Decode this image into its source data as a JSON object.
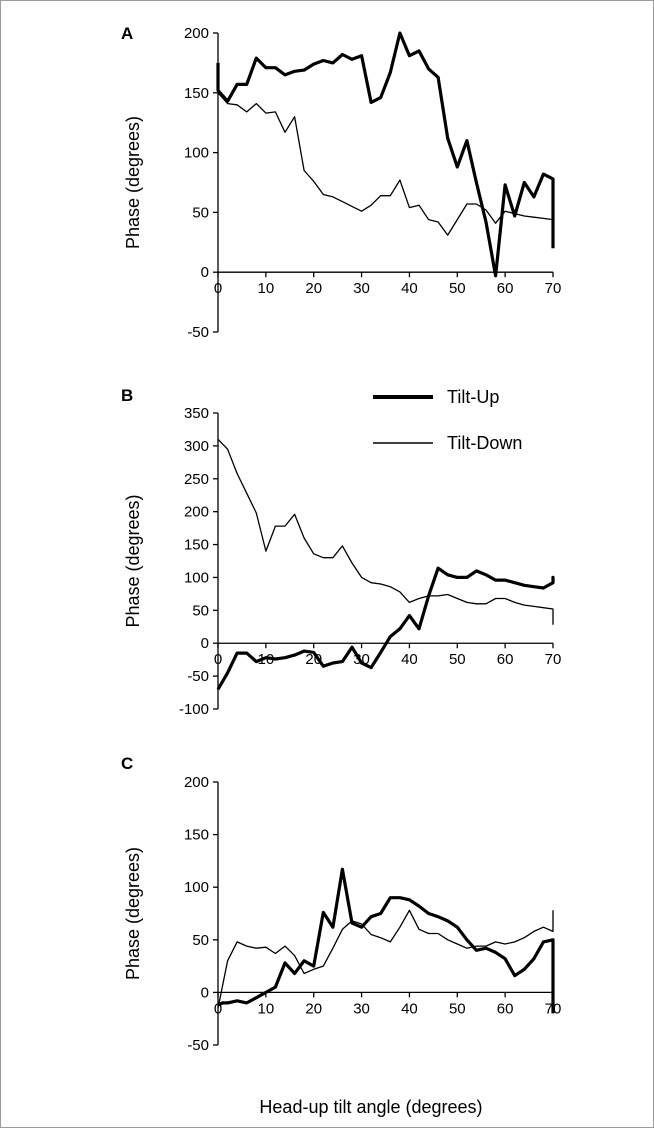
{
  "figure": {
    "xlabel": "Head-up tilt angle (degrees)"
  },
  "legend": {
    "items": [
      {
        "label": "Tilt-Up",
        "series": "tilt_up"
      },
      {
        "label": "Tilt-Down",
        "series": "tilt_down"
      }
    ],
    "placement": "top-right of panel B"
  },
  "chart_data": [
    {
      "type": "line",
      "panel_label": "A",
      "ylabel": "Phase (degrees)",
      "xlim": [
        0,
        70
      ],
      "ylim": [
        -50,
        200
      ],
      "x_ticks": [
        0,
        10,
        20,
        30,
        40,
        50,
        60,
        70
      ],
      "y_ticks": [
        200,
        150,
        100,
        50,
        0,
        -50
      ],
      "grid": false,
      "series": [
        {
          "key": "tilt_up",
          "name": "Tilt-Up",
          "style": "thick",
          "x": [
            0,
            0,
            2,
            4,
            6,
            8,
            10,
            12,
            14,
            16,
            18,
            20,
            22,
            24,
            26,
            28,
            30,
            32,
            34,
            36,
            38,
            40,
            42,
            44,
            46,
            48,
            50,
            52,
            54,
            56,
            58,
            60,
            62,
            64,
            66,
            68,
            70,
            70
          ],
          "y": [
            175,
            152,
            143,
            157,
            157,
            179,
            171,
            171,
            165,
            168,
            169,
            174,
            177,
            175,
            182,
            178,
            181,
            142,
            146,
            167,
            200,
            181,
            185,
            170,
            163,
            112,
            88,
            110,
            75,
            42,
            -3,
            73,
            47,
            75,
            63,
            82,
            78,
            20
          ]
        },
        {
          "key": "tilt_down",
          "name": "Tilt-Down",
          "style": "thin",
          "x": [
            0,
            2,
            4,
            6,
            8,
            10,
            12,
            14,
            16,
            18,
            20,
            22,
            24,
            26,
            28,
            30,
            32,
            34,
            36,
            38,
            40,
            42,
            44,
            46,
            48,
            50,
            52,
            54,
            56,
            58,
            60,
            62,
            64,
            66,
            68,
            70,
            70
          ],
          "y": [
            150,
            141,
            140,
            134,
            141,
            133,
            134,
            117,
            130,
            85,
            76,
            65,
            63,
            59,
            55,
            51,
            56,
            64,
            64,
            77,
            54,
            56,
            44,
            42,
            31,
            44,
            57,
            57,
            52,
            41,
            51,
            49,
            47,
            46,
            45,
            44,
            25
          ]
        }
      ]
    },
    {
      "type": "line",
      "panel_label": "B",
      "ylabel": "Phase (degrees)",
      "xlim": [
        0,
        70
      ],
      "ylim": [
        -100,
        350
      ],
      "x_ticks": [
        0,
        10,
        20,
        30,
        40,
        50,
        60,
        70
      ],
      "y_ticks": [
        350,
        300,
        250,
        200,
        150,
        100,
        50,
        0,
        -50,
        -100
      ],
      "grid": false,
      "series": [
        {
          "key": "tilt_up",
          "name": "Tilt-Up",
          "style": "thick",
          "x": [
            0,
            2,
            4,
            6,
            8,
            10,
            12,
            14,
            16,
            18,
            20,
            22,
            24,
            26,
            28,
            30,
            32,
            34,
            36,
            38,
            40,
            42,
            44,
            46,
            48,
            50,
            52,
            54,
            56,
            58,
            60,
            62,
            64,
            66,
            68,
            70,
            70,
            70
          ],
          "y": [
            -70,
            -45,
            -15,
            -15,
            -28,
            -22,
            -24,
            -22,
            -18,
            -12,
            -14,
            -35,
            -30,
            -28,
            -6,
            -30,
            -37,
            -14,
            10,
            22,
            42,
            22,
            72,
            114,
            104,
            100,
            100,
            110,
            104,
            96,
            96,
            92,
            88,
            86,
            84,
            92,
            100,
            95
          ]
        },
        {
          "key": "tilt_down",
          "name": "Tilt-Down",
          "style": "thin",
          "x": [
            0,
            2,
            4,
            6,
            8,
            10,
            12,
            14,
            16,
            18,
            20,
            22,
            24,
            26,
            28,
            30,
            32,
            34,
            36,
            38,
            40,
            42,
            44,
            46,
            48,
            50,
            52,
            54,
            56,
            58,
            60,
            62,
            64,
            66,
            68,
            70,
            70
          ],
          "y": [
            310,
            295,
            258,
            228,
            198,
            140,
            178,
            178,
            196,
            160,
            136,
            130,
            130,
            148,
            122,
            100,
            92,
            90,
            86,
            78,
            62,
            68,
            72,
            72,
            74,
            68,
            62,
            60,
            60,
            68,
            68,
            62,
            58,
            56,
            54,
            52,
            28
          ]
        }
      ]
    },
    {
      "type": "line",
      "panel_label": "C",
      "ylabel": "Phase (degrees)",
      "xlim": [
        0,
        70
      ],
      "ylim": [
        -50,
        200
      ],
      "x_ticks": [
        0,
        10,
        20,
        30,
        40,
        50,
        60,
        70
      ],
      "y_ticks": [
        200,
        150,
        100,
        50,
        0,
        -50
      ],
      "grid": false,
      "series": [
        {
          "key": "tilt_up",
          "name": "Tilt-Up",
          "style": "thick",
          "x": [
            0,
            1,
            2,
            4,
            6,
            8,
            10,
            12,
            14,
            16,
            18,
            20,
            22,
            24,
            26,
            28,
            30,
            32,
            34,
            36,
            38,
            40,
            42,
            44,
            46,
            48,
            50,
            52,
            54,
            56,
            58,
            60,
            62,
            64,
            66,
            68,
            70,
            70
          ],
          "y": [
            -12,
            -10,
            -10,
            -8,
            -10,
            -5,
            0,
            5,
            28,
            18,
            30,
            25,
            76,
            62,
            117,
            66,
            62,
            72,
            75,
            90,
            90,
            88,
            82,
            75,
            72,
            68,
            62,
            50,
            40,
            42,
            38,
            32,
            16,
            22,
            32,
            48,
            50,
            -20
          ]
        },
        {
          "key": "tilt_down",
          "name": "Tilt-Down",
          "style": "thin",
          "x": [
            0,
            2,
            4,
            6,
            8,
            10,
            12,
            14,
            16,
            18,
            20,
            22,
            24,
            26,
            28,
            30,
            32,
            34,
            36,
            38,
            40,
            42,
            44,
            46,
            48,
            50,
            52,
            54,
            56,
            58,
            60,
            62,
            64,
            66,
            68,
            70,
            70
          ],
          "y": [
            -15,
            30,
            48,
            44,
            42,
            43,
            37,
            44,
            35,
            18,
            22,
            25,
            42,
            60,
            68,
            65,
            55,
            52,
            48,
            62,
            78,
            60,
            56,
            56,
            50,
            46,
            42,
            44,
            44,
            48,
            46,
            48,
            52,
            58,
            62,
            58,
            78
          ]
        }
      ]
    }
  ]
}
